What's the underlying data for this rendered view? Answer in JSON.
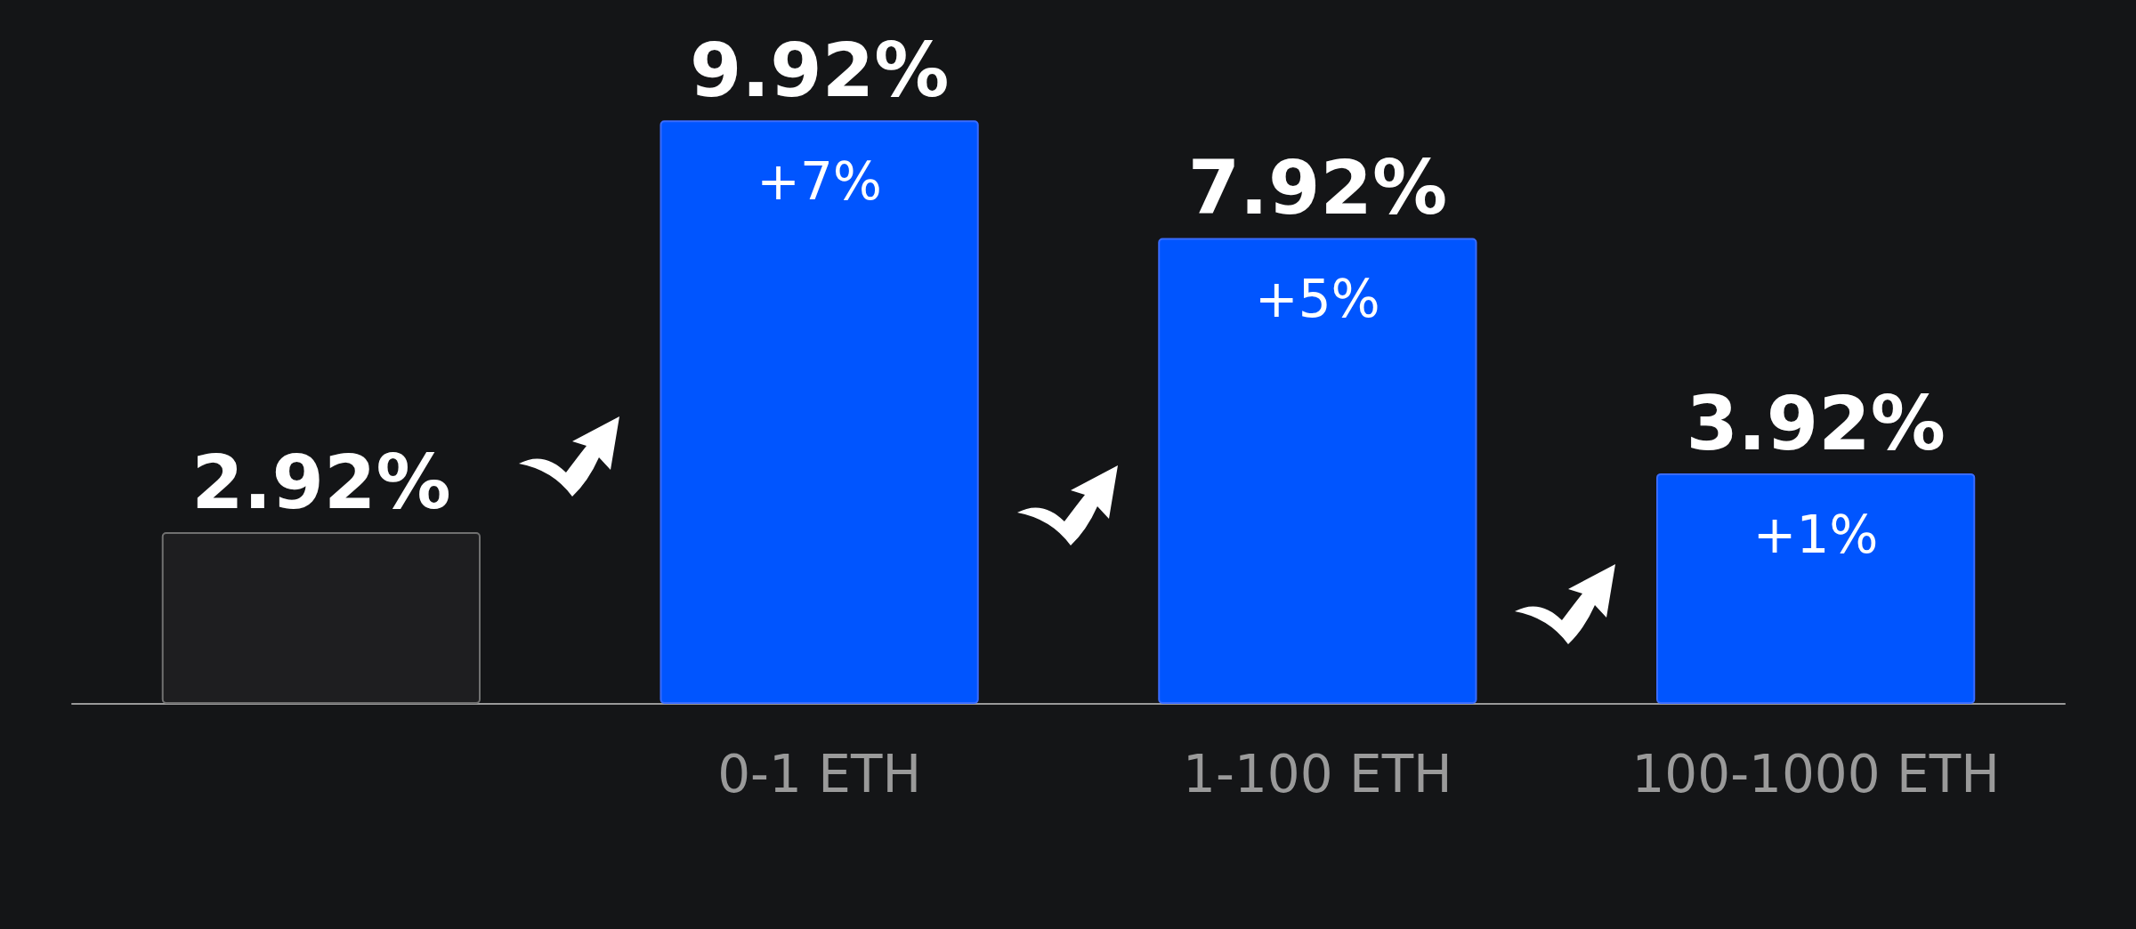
{
  "chart_data": {
    "type": "bar",
    "categories": [
      null,
      "0-1 ETH",
      "1-100 ETH",
      "100-1000 ETH"
    ],
    "values": [
      2.92,
      9.92,
      7.92,
      3.92
    ],
    "colors": [
      "#1e1e20",
      "#0055ff",
      "#0055ff",
      "#0055ff"
    ],
    "value_labels": [
      "2.92%",
      "9.92%",
      "7.92%",
      "3.92%"
    ],
    "annotations": [
      {
        "text": "+7%",
        "x": "0-1 ETH",
        "y": 9.92
      },
      {
        "text": "+5%",
        "x": "1-100 ETH",
        "y": 7.92
      },
      {
        "text": "+1%",
        "x": "100-1000 ETH",
        "y": 3.92
      }
    ],
    "grid": false
  }
}
